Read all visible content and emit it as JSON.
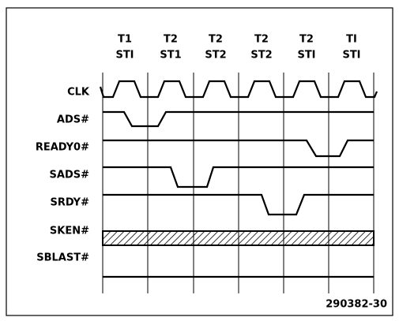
{
  "columns": [
    {
      "state": "T1",
      "substate": "STI"
    },
    {
      "state": "T2",
      "substate": "ST1"
    },
    {
      "state": "T2",
      "substate": "ST2"
    },
    {
      "state": "T2",
      "substate": "ST2"
    },
    {
      "state": "T2",
      "substate": "STI"
    },
    {
      "state": "TI",
      "substate": "STI"
    }
  ],
  "signals": [
    "CLK",
    "ADS#",
    "READY0#",
    "SADS#",
    "SRDY#",
    "SKEN#",
    "SBLAST#"
  ],
  "figure_id": "290382-30"
}
